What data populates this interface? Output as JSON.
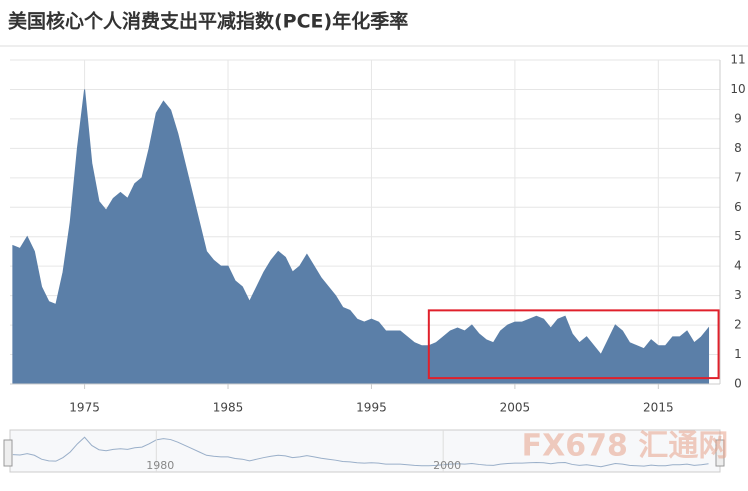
{
  "chart_data": {
    "type": "area",
    "title": "美国核心个人消费支出平减指数(PCE)年化季率",
    "x": [
      1970,
      1970.5,
      1971,
      1971.5,
      1972,
      1972.5,
      1973,
      1973.5,
      1974,
      1974.5,
      1975,
      1975.5,
      1976,
      1976.5,
      1977,
      1977.5,
      1978,
      1978.5,
      1979,
      1979.5,
      1980,
      1980.5,
      1981,
      1981.5,
      1982,
      1982.5,
      1983,
      1983.5,
      1984,
      1984.5,
      1985,
      1985.5,
      1986,
      1986.5,
      1987,
      1987.5,
      1988,
      1988.5,
      1989,
      1989.5,
      1990,
      1990.5,
      1991,
      1991.5,
      1992,
      1992.5,
      1993,
      1993.5,
      1994,
      1994.5,
      1995,
      1995.5,
      1996,
      1996.5,
      1997,
      1997.5,
      1998,
      1998.5,
      1999,
      1999.5,
      2000,
      2000.5,
      2001,
      2001.5,
      2002,
      2002.5,
      2003,
      2003.5,
      2004,
      2004.5,
      2005,
      2005.5,
      2006,
      2006.5,
      2007,
      2007.5,
      2008,
      2008.5,
      2009,
      2009.5,
      2010,
      2010.5,
      2011,
      2011.5,
      2012,
      2012.5,
      2013,
      2013.5,
      2014,
      2014.5,
      2015,
      2015.5,
      2016,
      2016.5,
      2017,
      2017.5,
      2018,
      2018.5
    ],
    "series": [
      {
        "color": "#5b7fa8",
        "values": [
          4.7,
          4.6,
          5.0,
          4.5,
          3.3,
          2.8,
          2.7,
          3.8,
          5.5,
          8.0,
          10.0,
          7.5,
          6.2,
          5.9,
          6.3,
          6.5,
          6.3,
          6.8,
          7.0,
          8.0,
          9.2,
          9.6,
          9.3,
          8.5,
          7.5,
          6.5,
          5.5,
          4.5,
          4.2,
          4.0,
          4.0,
          3.5,
          3.3,
          2.8,
          3.3,
          3.8,
          4.2,
          4.5,
          4.3,
          3.8,
          4.0,
          4.4,
          4.0,
          3.6,
          3.3,
          3.0,
          2.6,
          2.5,
          2.2,
          2.1,
          2.2,
          2.1,
          1.8,
          1.8,
          1.8,
          1.6,
          1.4,
          1.3,
          1.3,
          1.4,
          1.6,
          1.8,
          1.9,
          1.8,
          2.0,
          1.7,
          1.5,
          1.4,
          1.8,
          2.0,
          2.1,
          2.1,
          2.2,
          2.3,
          2.2,
          1.9,
          2.2,
          2.3,
          1.7,
          1.4,
          1.6,
          1.3,
          1.0,
          1.5,
          2.0,
          1.8,
          1.4,
          1.3,
          1.2,
          1.5,
          1.3,
          1.3,
          1.6,
          1.6,
          1.8,
          1.4,
          1.6,
          1.9
        ]
      }
    ],
    "xlim": [
      1969.8,
      2019.3
    ],
    "xticks": [
      1975,
      1985,
      1995,
      2005,
      2015
    ],
    "ylim": [
      0,
      11
    ],
    "yticks": [
      0,
      1,
      2,
      3,
      4,
      5,
      6,
      7,
      8,
      9,
      10,
      11
    ],
    "grid": true,
    "navigator_xticks": [
      1980,
      2000
    ],
    "highlight": {
      "xlim": [
        1999,
        2019.2
      ],
      "ylim": [
        0.2,
        2.5
      ],
      "color": "#e0202b"
    }
  },
  "watermark": "FX678 汇通网"
}
